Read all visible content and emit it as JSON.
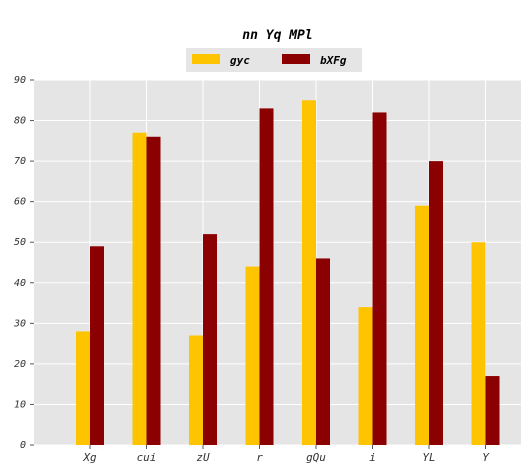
{
  "chart_data": {
    "type": "bar",
    "title": "nn Yq MPl",
    "xlabel": "",
    "ylabel": "",
    "categories": [
      "Xg",
      "cui",
      "zU",
      "r",
      "gQu",
      "i",
      "YL",
      "Y"
    ],
    "series": [
      {
        "name": "gyc",
        "color": "#ffc400",
        "values": [
          28,
          77,
          27,
          44,
          85,
          34,
          59,
          50
        ]
      },
      {
        "name": "bXFg",
        "color": "#8b0000",
        "values": [
          49,
          76,
          52,
          83,
          46,
          82,
          70,
          17
        ]
      }
    ],
    "ylim": [
      0,
      90
    ],
    "yticks": [
      "0",
      "10",
      "20",
      "30",
      "40",
      "50",
      "60",
      "70",
      "80",
      "90"
    ],
    "grid": true,
    "legend_position": "top-center",
    "plot_background": "#e5e5e5",
    "grid_color": "#ffffff"
  }
}
